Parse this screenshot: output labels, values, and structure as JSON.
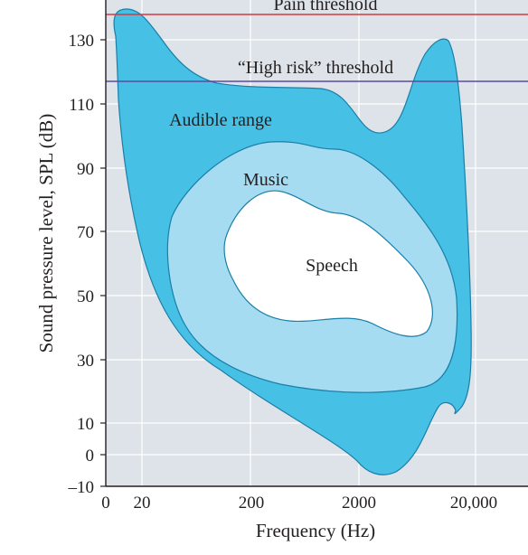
{
  "y_axis": {
    "label": "Sound pressure level, SPL (dB)",
    "ticks": [
      "130",
      "110",
      "90",
      "70",
      "50",
      "30",
      "10",
      "0",
      "–10"
    ]
  },
  "x_axis": {
    "label": "Frequency (Hz)",
    "ticks": [
      "0",
      "20",
      "200",
      "2000",
      "20,000"
    ]
  },
  "thresholds": {
    "pain": "Pain threshold",
    "high_risk": "“High risk” threshold"
  },
  "regions": {
    "audible": "Audible range",
    "music": "Music",
    "speech": "Speech"
  },
  "colors": {
    "plot_background": "#dde3e8",
    "gridline": "#ffffff",
    "audible_fill": "#47c0e6",
    "music_fill": "#a6dcf1",
    "speech_fill": "#ffffff",
    "region_outline": "#1a7fa8",
    "pain_line": "#d7393f",
    "high_risk_line": "#5a4aa0",
    "text": "#231f20"
  }
}
